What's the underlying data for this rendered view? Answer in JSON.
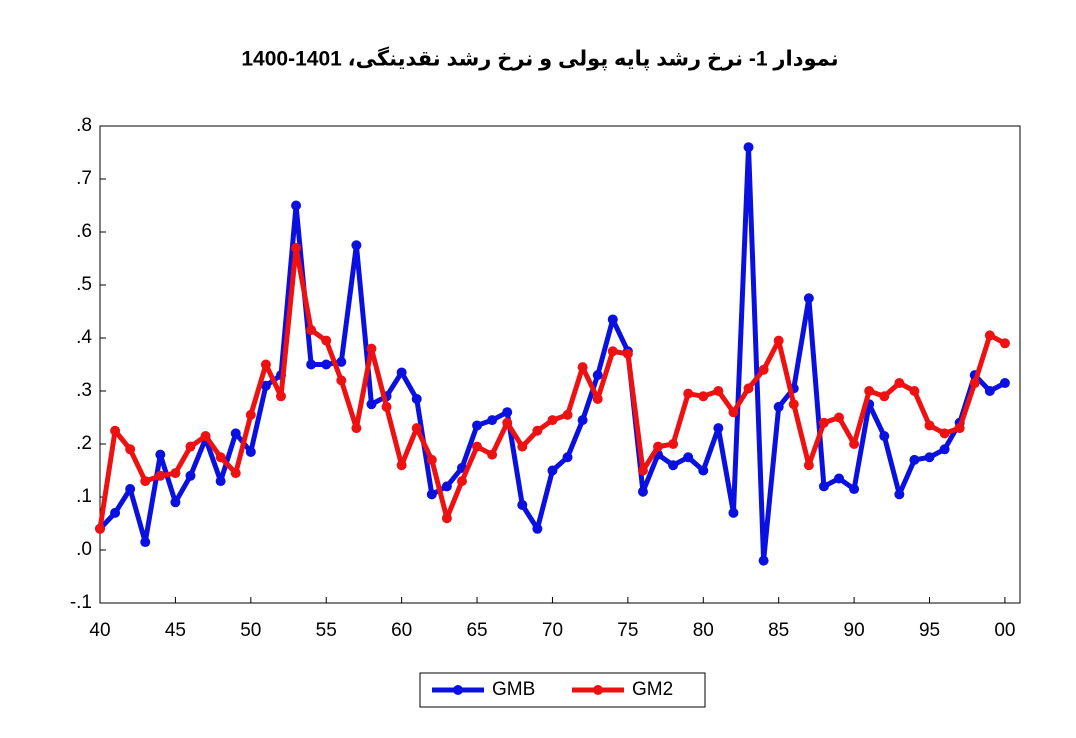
{
  "chart_data": {
    "type": "line",
    "title": "نمودار 1- نرخ رشد پایه پولی و نرخ رشد نقدینگی، 1401-1400",
    "x": [
      40,
      41,
      42,
      43,
      44,
      45,
      46,
      47,
      48,
      49,
      50,
      51,
      52,
      53,
      54,
      55,
      56,
      57,
      58,
      59,
      60,
      61,
      62,
      63,
      64,
      65,
      66,
      67,
      68,
      69,
      70,
      71,
      72,
      73,
      74,
      75,
      76,
      77,
      78,
      79,
      80,
      81,
      82,
      83,
      84,
      85,
      86,
      87,
      88,
      89,
      90,
      91,
      92,
      93,
      94,
      95,
      96,
      97,
      98,
      99,
      100
    ],
    "series": [
      {
        "name": "GMB",
        "color": "#0a10e0",
        "values": [
          0.04,
          0.07,
          0.115,
          0.015,
          0.18,
          0.09,
          0.14,
          0.21,
          0.13,
          0.22,
          0.185,
          0.31,
          0.33,
          0.65,
          0.35,
          0.35,
          0.355,
          0.575,
          0.275,
          0.29,
          0.335,
          0.285,
          0.105,
          0.12,
          0.155,
          0.235,
          0.245,
          0.26,
          0.085,
          0.04,
          0.15,
          0.175,
          0.245,
          0.33,
          0.435,
          0.375,
          0.11,
          0.18,
          0.16,
          0.175,
          0.15,
          0.23,
          0.07,
          0.76,
          -0.02,
          0.27,
          0.305,
          0.475,
          0.12,
          0.135,
          0.115,
          0.275,
          0.215,
          0.105,
          0.17,
          0.175,
          0.19,
          0.24,
          0.33,
          0.3,
          0.315
        ]
      },
      {
        "name": "GM2",
        "color": "#ee1111",
        "values": [
          0.04,
          0.225,
          0.19,
          0.13,
          0.14,
          0.145,
          0.195,
          0.215,
          0.175,
          0.145,
          0.255,
          0.35,
          0.29,
          0.57,
          0.415,
          0.395,
          0.32,
          0.23,
          0.38,
          0.27,
          0.16,
          0.23,
          0.17,
          0.06,
          0.13,
          0.195,
          0.18,
          0.24,
          0.195,
          0.225,
          0.245,
          0.255,
          0.345,
          0.285,
          0.375,
          0.37,
          0.15,
          0.195,
          0.2,
          0.295,
          0.29,
          0.3,
          0.26,
          0.305,
          0.34,
          0.395,
          0.275,
          0.16,
          0.24,
          0.25,
          0.2,
          0.3,
          0.29,
          0.315,
          0.3,
          0.235,
          0.22,
          0.23,
          0.315,
          0.405,
          0.39
        ]
      }
    ],
    "xlim": [
      40,
      101
    ],
    "xticks": [
      40,
      45,
      50,
      55,
      60,
      65,
      70,
      75,
      80,
      85,
      90,
      95,
      {
        "value": 100,
        "label": "00"
      }
    ],
    "ylim": [
      -0.1,
      0.8
    ],
    "yticks": [
      {
        "value": -0.1,
        "label": "-.1"
      },
      {
        "value": 0,
        "label": ".0"
      },
      {
        "value": 0.1,
        "label": ".1"
      },
      {
        "value": 0.2,
        "label": ".2"
      },
      {
        "value": 0.3,
        "label": ".3"
      },
      {
        "value": 0.4,
        "label": ".4"
      },
      {
        "value": 0.5,
        "label": ".5"
      },
      {
        "value": 0.6,
        "label": ".6"
      },
      {
        "value": 0.7,
        "label": ".7"
      },
      {
        "value": 0.8,
        "label": ".8"
      }
    ]
  }
}
